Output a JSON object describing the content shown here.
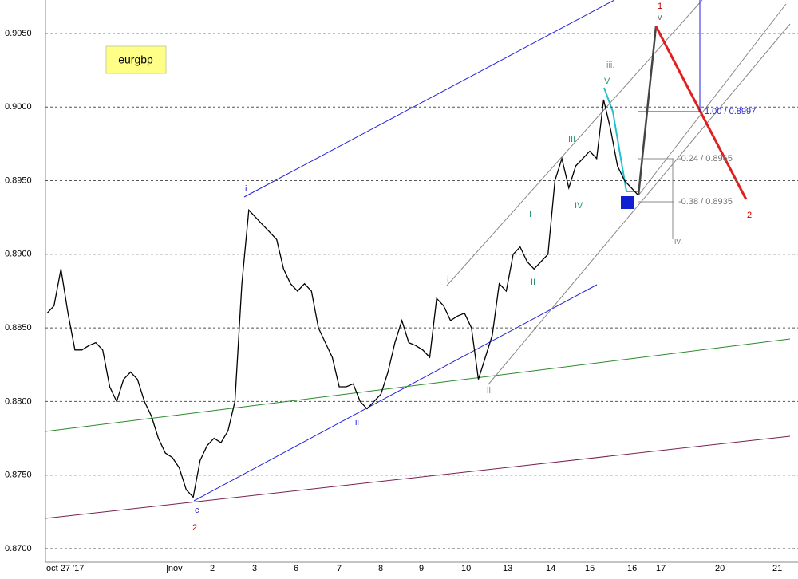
{
  "chart_data": {
    "type": "line",
    "title": "eurgbp",
    "values": [
      0.886,
      0.8865,
      0.889,
      0.886,
      0.8835,
      0.8835,
      0.8838,
      0.884,
      0.8835,
      0.881,
      0.88,
      0.8815,
      0.882,
      0.8815,
      0.88,
      0.879,
      0.8775,
      0.8765,
      0.8762,
      0.8755,
      0.874,
      0.8735,
      0.876,
      0.877,
      0.8775,
      0.8772,
      0.878,
      0.88,
      0.888,
      0.893,
      0.8925,
      0.892,
      0.8915,
      0.891,
      0.889,
      0.888,
      0.8875,
      0.888,
      0.8875,
      0.885,
      0.884,
      0.883,
      0.881,
      0.881,
      0.8812,
      0.88,
      0.8795,
      0.88,
      0.8805,
      0.882,
      0.884,
      0.8855,
      0.884,
      0.8838,
      0.8835,
      0.883,
      0.887,
      0.8865,
      0.8855,
      0.8858,
      0.886,
      0.885,
      0.8815,
      0.883,
      0.8845,
      0.888,
      0.8875,
      0.89,
      0.8905,
      0.8895,
      0.889,
      0.8895,
      0.89,
      0.895,
      0.8965,
      0.8945,
      0.896,
      0.8965,
      0.897,
      0.8965,
      0.9005,
      0.8985,
      0.896,
      0.895,
      0.8945,
      0.894
    ],
    "color": "#000000",
    "ylim": [
      0.86908,
      0.90727
    ],
    "yticks": [
      {
        "value": 0.87,
        "label": "0.8700"
      },
      {
        "value": 0.875,
        "label": "0.8750"
      },
      {
        "value": 0.88,
        "label": "0.8800"
      },
      {
        "value": 0.885,
        "label": "0.8850"
      },
      {
        "value": 0.89,
        "label": "0.8900"
      },
      {
        "value": 0.895,
        "label": "0.8950"
      },
      {
        "value": 0.9,
        "label": "0.9000"
      },
      {
        "value": 0.905,
        "label": "0.9050"
      }
    ],
    "x_labels": [
      "oct 27 '17",
      "|nov",
      "2",
      "3",
      "6",
      "7",
      "8",
      "9",
      "10",
      "13",
      "14",
      "15",
      "16",
      "17",
      "20",
      "21"
    ],
    "annotations": [
      "1",
      "v",
      "iii.",
      "V",
      "1.00 / 0.8997",
      "III",
      "-0.24 / 0.8965",
      "i",
      "IV",
      "-0.38 / 0.8935",
      "2",
      "I",
      "iv.",
      "II",
      "i.",
      "ii.",
      "ii",
      "c",
      "2"
    ],
    "grid": true
  }
}
